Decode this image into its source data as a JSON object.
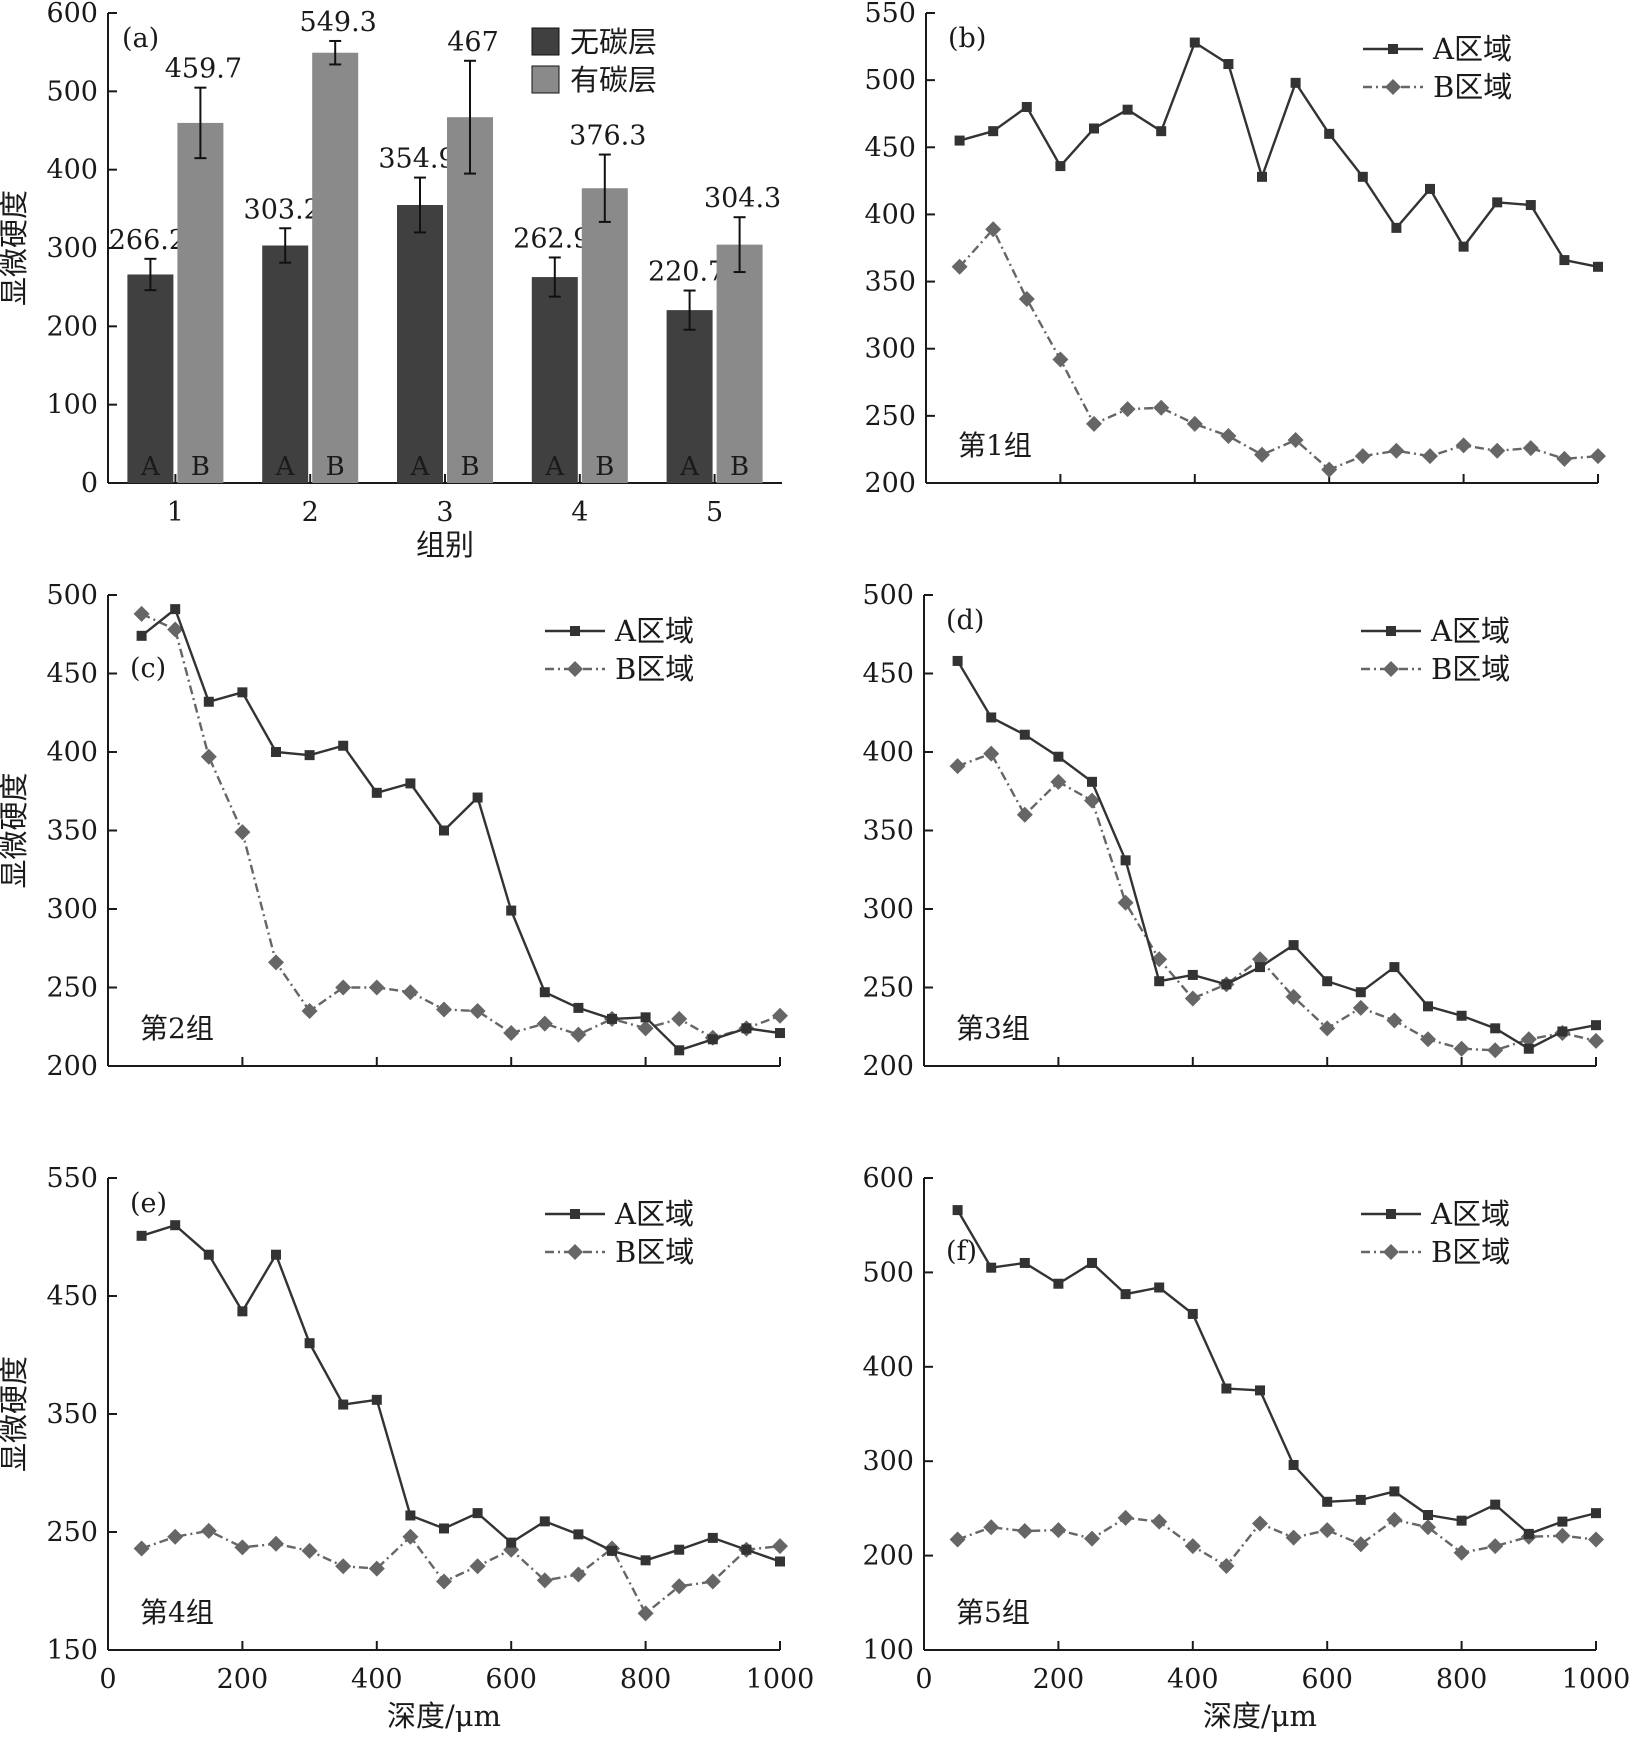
{
  "colors": {
    "axis": "#1a1a1a",
    "bar_a": "#404040",
    "bar_b": "#8a8a8a",
    "line_a": "#333333",
    "line_b": "#666666"
  },
  "chart_data": [
    {
      "id": "a",
      "type": "bar",
      "panel_label": "(a)",
      "categories": [
        "1",
        "2",
        "3",
        "4",
        "5"
      ],
      "xlabel": "组别",
      "ylabel": "显微硬度",
      "ylim": [
        0,
        600
      ],
      "yticks": [
        "0",
        "100",
        "200",
        "300",
        "400",
        "500",
        "600"
      ],
      "bar_labels": [
        "A",
        "B"
      ],
      "legend_position": "top-center",
      "series": [
        {
          "name": "无碳层",
          "values": [
            266.2,
            303.2,
            354.9,
            262.9,
            220.7
          ],
          "errors": [
            20,
            22,
            35,
            25,
            25
          ],
          "value_labels": [
            "266.2",
            "303.2",
            "354.9",
            "262.9",
            "220.7"
          ],
          "color": "#404040"
        },
        {
          "name": "有碳层",
          "values": [
            459.7,
            549.3,
            467,
            376.3,
            304.3
          ],
          "errors": [
            45,
            15,
            72,
            43,
            35
          ],
          "value_labels": [
            "459.7",
            "549.3",
            "467",
            "376.3",
            "304.3"
          ],
          "color": "#8a8a8a"
        }
      ]
    },
    {
      "id": "b",
      "type": "line",
      "panel_label": "(b)",
      "group_label": "第1组",
      "xlim": [
        0,
        1000
      ],
      "ylim": [
        200,
        550
      ],
      "yticks": [
        "200",
        "250",
        "300",
        "350",
        "400",
        "450",
        "500",
        "550"
      ],
      "xticks": [],
      "xlabel": "",
      "ylabel": "",
      "legend_position": "top-right",
      "x": [
        50,
        100,
        150,
        200,
        250,
        300,
        350,
        400,
        450,
        500,
        550,
        600,
        650,
        700,
        750,
        800,
        850,
        900,
        950,
        1000
      ],
      "series": [
        {
          "name": "A区域",
          "marker": "square",
          "dashed": false,
          "values": [
            455,
            462,
            480,
            436,
            464,
            478,
            462,
            528,
            512,
            428,
            498,
            460,
            428,
            390,
            419,
            376,
            409,
            407,
            366,
            361
          ]
        },
        {
          "name": "B区域",
          "marker": "diamond",
          "dashed": true,
          "values": [
            361,
            389,
            337,
            292,
            244,
            255,
            256,
            244,
            235,
            221,
            232,
            210,
            220,
            224,
            220,
            228,
            224,
            226,
            218,
            220
          ]
        }
      ]
    },
    {
      "id": "c",
      "type": "line",
      "panel_label": "(c)",
      "group_label": "第2组",
      "xlim": [
        0,
        1000
      ],
      "ylim": [
        200,
        500
      ],
      "yticks": [
        "200",
        "250",
        "300",
        "350",
        "400",
        "450",
        "500"
      ],
      "xticks": [],
      "xlabel": "",
      "ylabel": "显微硬度",
      "legend_position": "top-right",
      "x": [
        50,
        100,
        150,
        200,
        250,
        300,
        350,
        400,
        450,
        500,
        550,
        600,
        650,
        700,
        750,
        800,
        850,
        900,
        950,
        1000
      ],
      "series": [
        {
          "name": "A区域",
          "marker": "square",
          "dashed": false,
          "values": [
            474,
            491,
            432,
            438,
            400,
            398,
            404,
            374,
            380,
            350,
            371,
            299,
            247,
            237,
            230,
            231,
            210,
            217,
            224,
            221
          ]
        },
        {
          "name": "B区域",
          "marker": "diamond",
          "dashed": true,
          "values": [
            488,
            478,
            397,
            349,
            266,
            235,
            250,
            250,
            247,
            236,
            235,
            221,
            227,
            220,
            230,
            224,
            230,
            218,
            224,
            232
          ]
        }
      ]
    },
    {
      "id": "d",
      "type": "line",
      "panel_label": "(d)",
      "group_label": "第3组",
      "xlim": [
        0,
        1000
      ],
      "ylim": [
        200,
        500
      ],
      "yticks": [
        "200",
        "250",
        "300",
        "350",
        "400",
        "450",
        "500"
      ],
      "xticks": [],
      "xlabel": "",
      "ylabel": "",
      "legend_position": "top-right",
      "x": [
        50,
        100,
        150,
        200,
        250,
        300,
        350,
        400,
        450,
        500,
        550,
        600,
        650,
        700,
        750,
        800,
        850,
        900,
        950,
        1000
      ],
      "series": [
        {
          "name": "A区域",
          "marker": "square",
          "dashed": false,
          "values": [
            458,
            422,
            411,
            397,
            381,
            331,
            254,
            258,
            252,
            263,
            277,
            254,
            247,
            263,
            238,
            232,
            224,
            211,
            222,
            226
          ]
        },
        {
          "name": "B区域",
          "marker": "diamond",
          "dashed": true,
          "values": [
            391,
            399,
            360,
            381,
            369,
            304,
            268,
            243,
            252,
            268,
            244,
            224,
            237,
            229,
            217,
            211,
            210,
            217,
            221,
            216
          ]
        }
      ]
    },
    {
      "id": "e",
      "type": "line",
      "panel_label": "(e)",
      "group_label": "第4组",
      "xlim": [
        0,
        1000
      ],
      "ylim": [
        150,
        550
      ],
      "yticks": [
        "150",
        "250",
        "350",
        "450",
        "550"
      ],
      "xticks": [
        "0",
        "200",
        "400",
        "600",
        "800",
        "1000"
      ],
      "xlabel": "深度/μm",
      "ylabel": "显微硬度",
      "legend_position": "top-right",
      "x": [
        50,
        100,
        150,
        200,
        250,
        300,
        350,
        400,
        450,
        500,
        550,
        600,
        650,
        700,
        750,
        800,
        850,
        900,
        950,
        1000
      ],
      "series": [
        {
          "name": "A区域",
          "marker": "square",
          "dashed": false,
          "values": [
            501,
            510,
            485,
            437,
            485,
            410,
            358,
            362,
            264,
            253,
            266,
            241,
            259,
            248,
            234,
            226,
            235,
            245,
            235,
            225
          ]
        },
        {
          "name": "B区域",
          "marker": "diamond",
          "dashed": true,
          "values": [
            236,
            246,
            251,
            237,
            240,
            234,
            221,
            219,
            246,
            208,
            221,
            235,
            209,
            214,
            236,
            181,
            204,
            208,
            235,
            238
          ]
        }
      ]
    },
    {
      "id": "f",
      "type": "line",
      "panel_label": "(f)",
      "group_label": "第5组",
      "xlim": [
        0,
        1000
      ],
      "ylim": [
        100,
        600
      ],
      "yticks": [
        "100",
        "200",
        "300",
        "400",
        "500",
        "600"
      ],
      "xticks": [
        "0",
        "200",
        "400",
        "600",
        "800",
        "1000"
      ],
      "xlabel": "深度/μm",
      "ylabel": "",
      "legend_position": "top-right",
      "x": [
        50,
        100,
        150,
        200,
        250,
        300,
        350,
        400,
        450,
        500,
        550,
        600,
        650,
        700,
        750,
        800,
        850,
        900,
        950,
        1000
      ],
      "series": [
        {
          "name": "A区域",
          "marker": "square",
          "dashed": false,
          "values": [
            566,
            505,
            510,
            488,
            510,
            477,
            484,
            456,
            377,
            375,
            296,
            257,
            259,
            268,
            243,
            237,
            254,
            223,
            236,
            245
          ]
        },
        {
          "name": "B区域",
          "marker": "diamond",
          "dashed": true,
          "values": [
            217,
            230,
            226,
            227,
            218,
            240,
            236,
            210,
            189,
            234,
            219,
            227,
            212,
            238,
            230,
            203,
            210,
            220,
            221,
            217
          ]
        }
      ]
    }
  ]
}
